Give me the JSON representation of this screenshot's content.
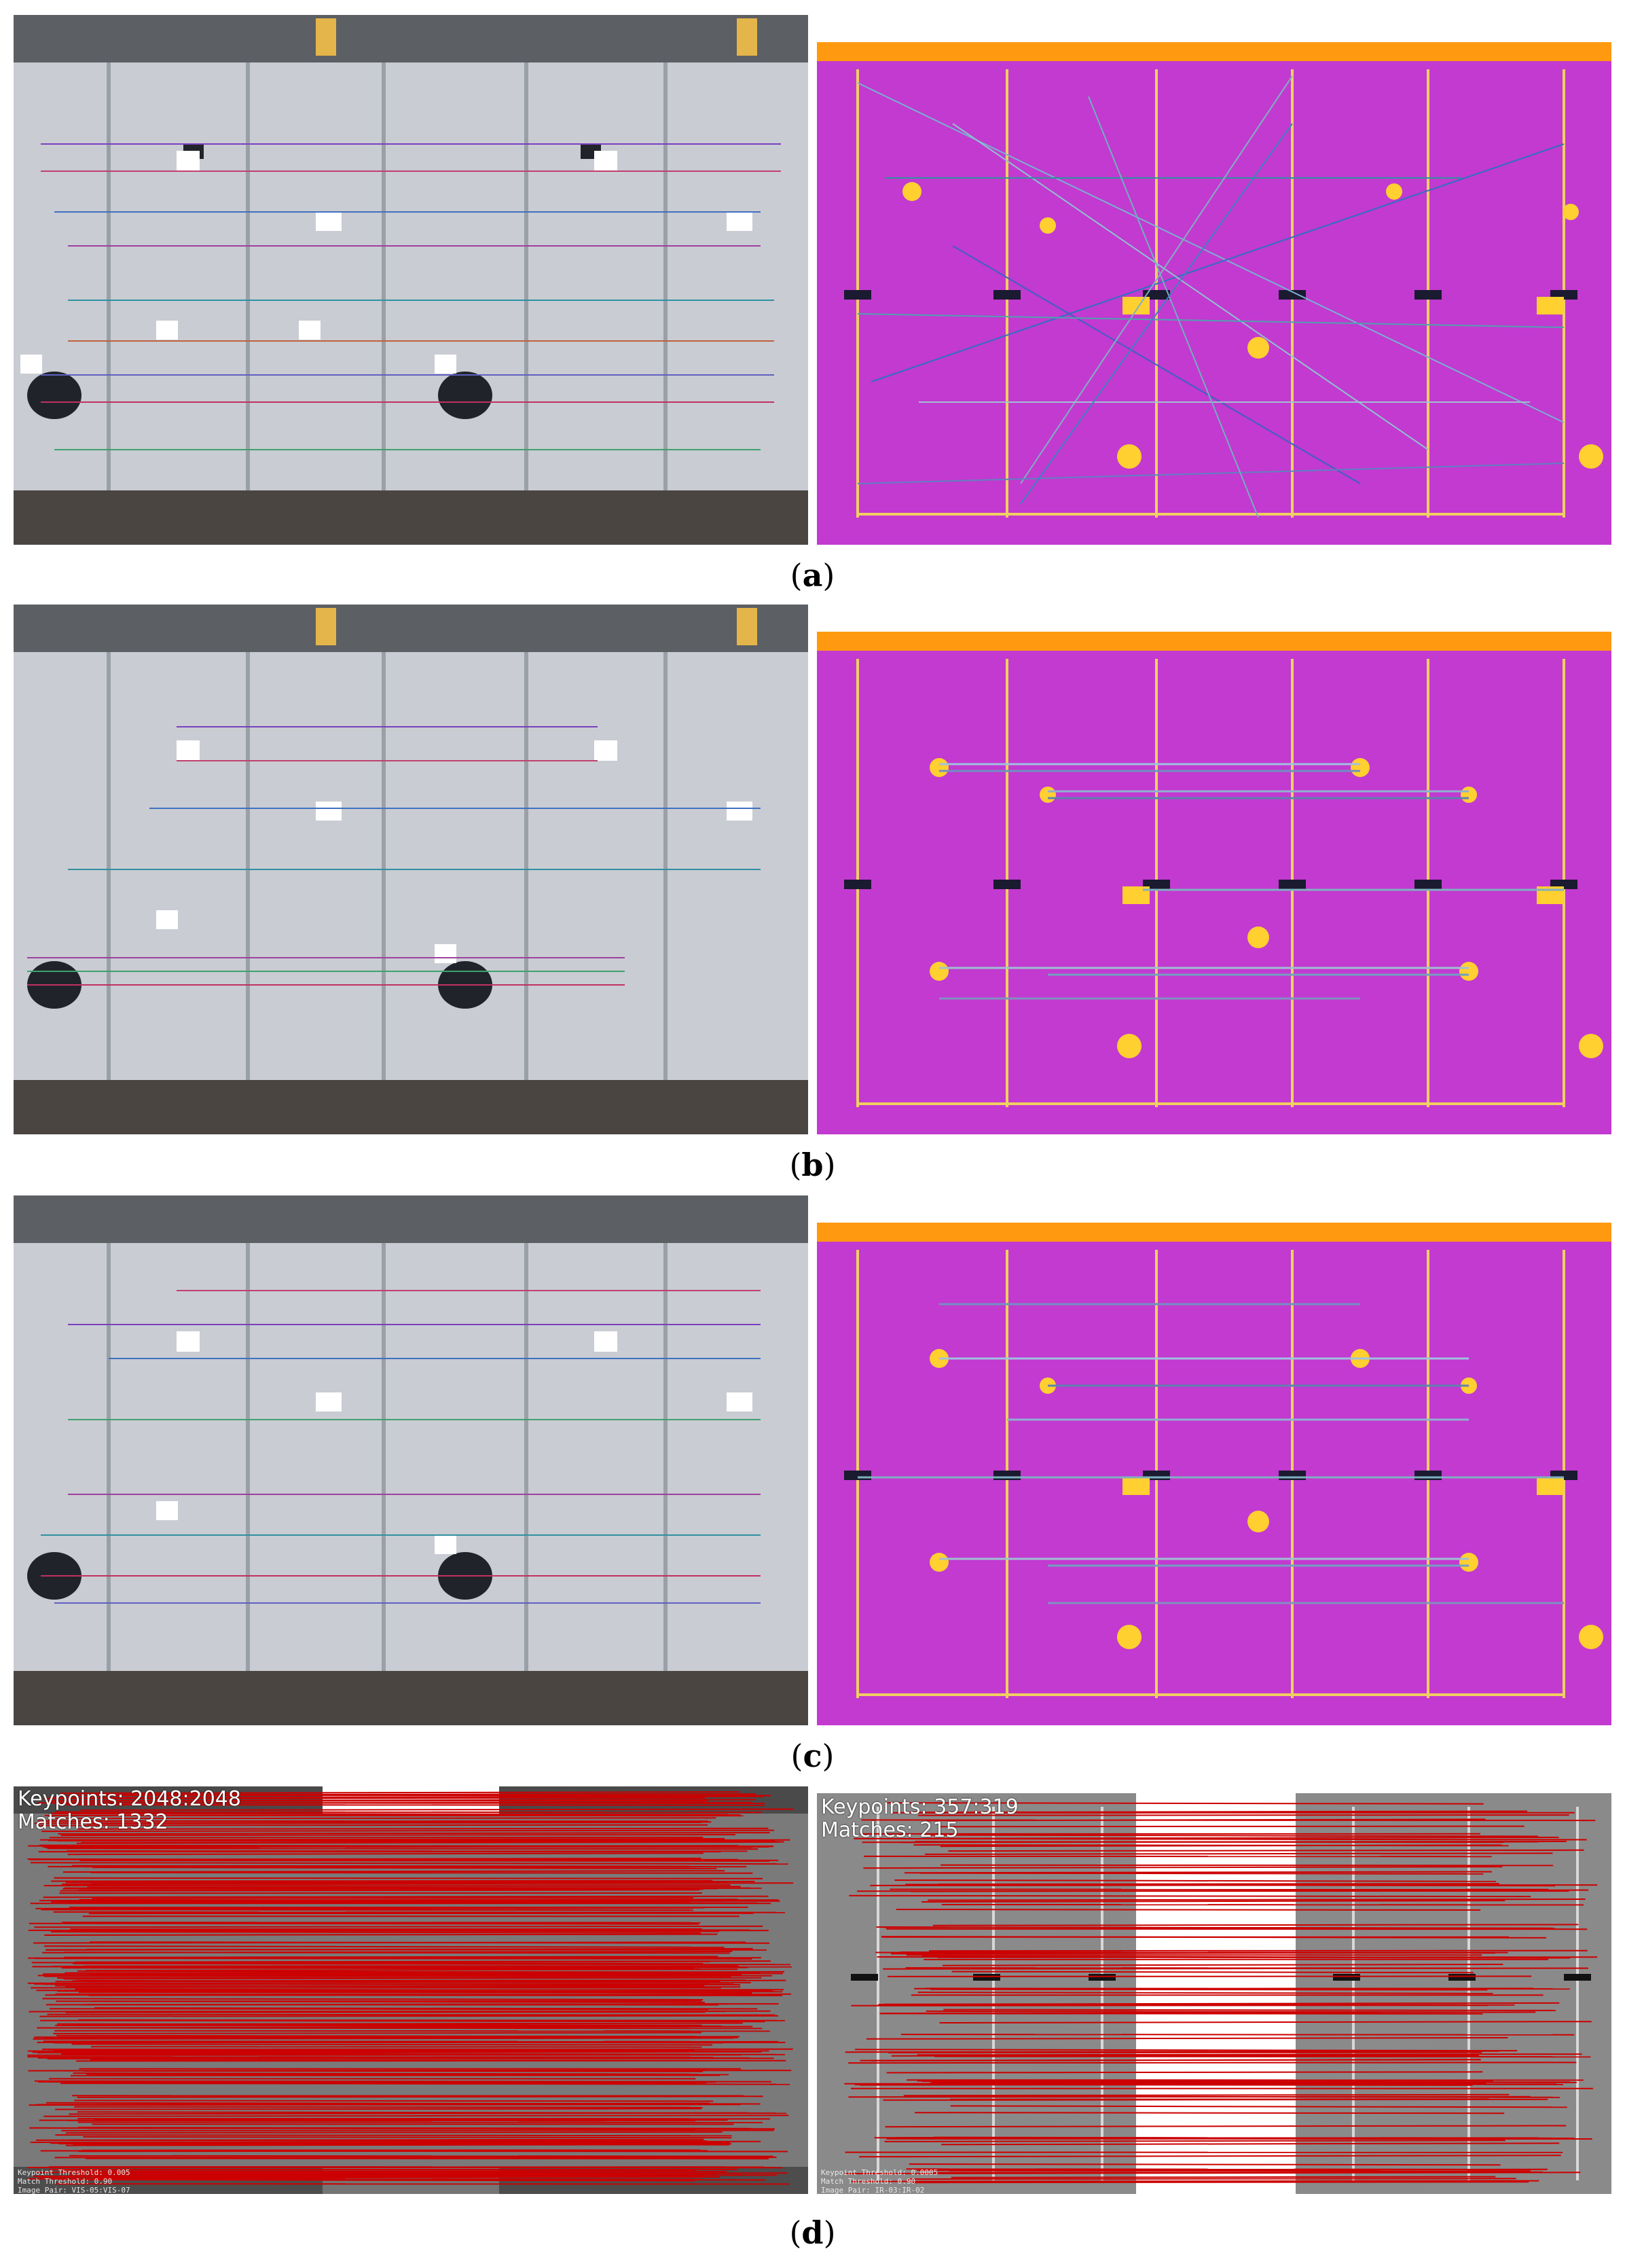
{
  "captions": [
    {
      "open": "(",
      "letter": "a",
      "close": ")"
    },
    {
      "open": "(",
      "letter": "b",
      "close": ")"
    },
    {
      "open": "(",
      "letter": "c",
      "close": ")"
    },
    {
      "open": "(",
      "letter": "d",
      "close": ")"
    }
  ],
  "panel_d": {
    "left": {
      "keypoints_label": "Keypoints: 2048:2048",
      "matches_label": "Matches: 1332",
      "footer_lines": [
        "Keypoint Threshold: 0.005",
        "Match Threshold: 0.90",
        "Image Pair: VIS-05:VIS-07"
      ]
    },
    "right": {
      "keypoints_label": "Keypoints: 357:319",
      "matches_label": "Matches: 215",
      "footer_lines": [
        "Keypoint Threshold: 0.0005",
        "Match Threshold: 0.90",
        "Image Pair: IR-03:IR-02"
      ]
    }
  },
  "colors": {
    "thermal_bg": "#c23ad0",
    "thermal_hot": "#ffb000",
    "roof_gray": "#c9ccd2",
    "match_red": "#cc0000"
  }
}
